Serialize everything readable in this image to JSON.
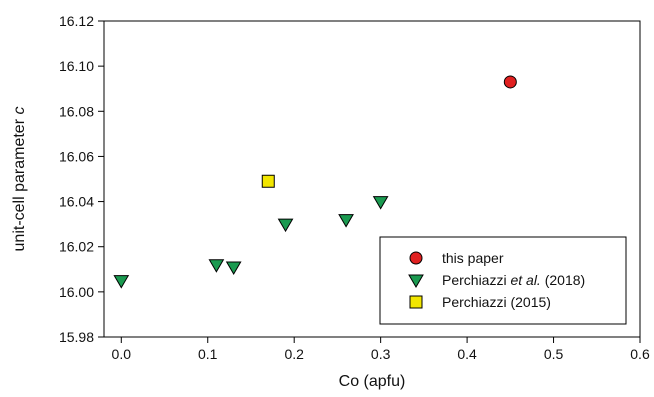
{
  "chart_data": {
    "type": "scatter",
    "xlabel": "Co (apfu)",
    "ylabel_prefix": "unit-cell parameter ",
    "ylabel_var": "c",
    "xlim": [
      -0.02,
      0.6
    ],
    "ylim": [
      15.98,
      16.12
    ],
    "x_ticks": [
      0.0,
      0.1,
      0.2,
      0.3,
      0.4,
      0.5,
      0.6
    ],
    "x_tick_labels": [
      "0.0",
      "0.1",
      "0.2",
      "0.3",
      "0.4",
      "0.5",
      "0.6"
    ],
    "y_ticks": [
      15.98,
      16.0,
      16.02,
      16.04,
      16.06,
      16.08,
      16.1,
      16.12
    ],
    "y_tick_labels": [
      "15.98",
      "16.00",
      "16.02",
      "16.04",
      "16.06",
      "16.08",
      "16.10",
      "16.12"
    ],
    "grid": false,
    "legend_position": "bottom-right",
    "series": [
      {
        "legend_parts": [
          "this paper"
        ],
        "marker": "circle",
        "color": "#e02020",
        "points": [
          {
            "x": 0.45,
            "y": 16.093
          }
        ]
      },
      {
        "legend_parts": [
          "Perchiazzi ",
          "et al.",
          " (2018)"
        ],
        "marker": "triangle-down",
        "color": "#1a9a50",
        "points": [
          {
            "x": 0.0,
            "y": 16.005
          },
          {
            "x": 0.11,
            "y": 16.012
          },
          {
            "x": 0.13,
            "y": 16.011
          },
          {
            "x": 0.19,
            "y": 16.03
          },
          {
            "x": 0.26,
            "y": 16.032
          },
          {
            "x": 0.3,
            "y": 16.04
          }
        ]
      },
      {
        "legend_parts": [
          "Perchiazzi (2015)"
        ],
        "marker": "square",
        "color": "#f2e600",
        "points": [
          {
            "x": 0.17,
            "y": 16.049
          }
        ]
      }
    ]
  }
}
